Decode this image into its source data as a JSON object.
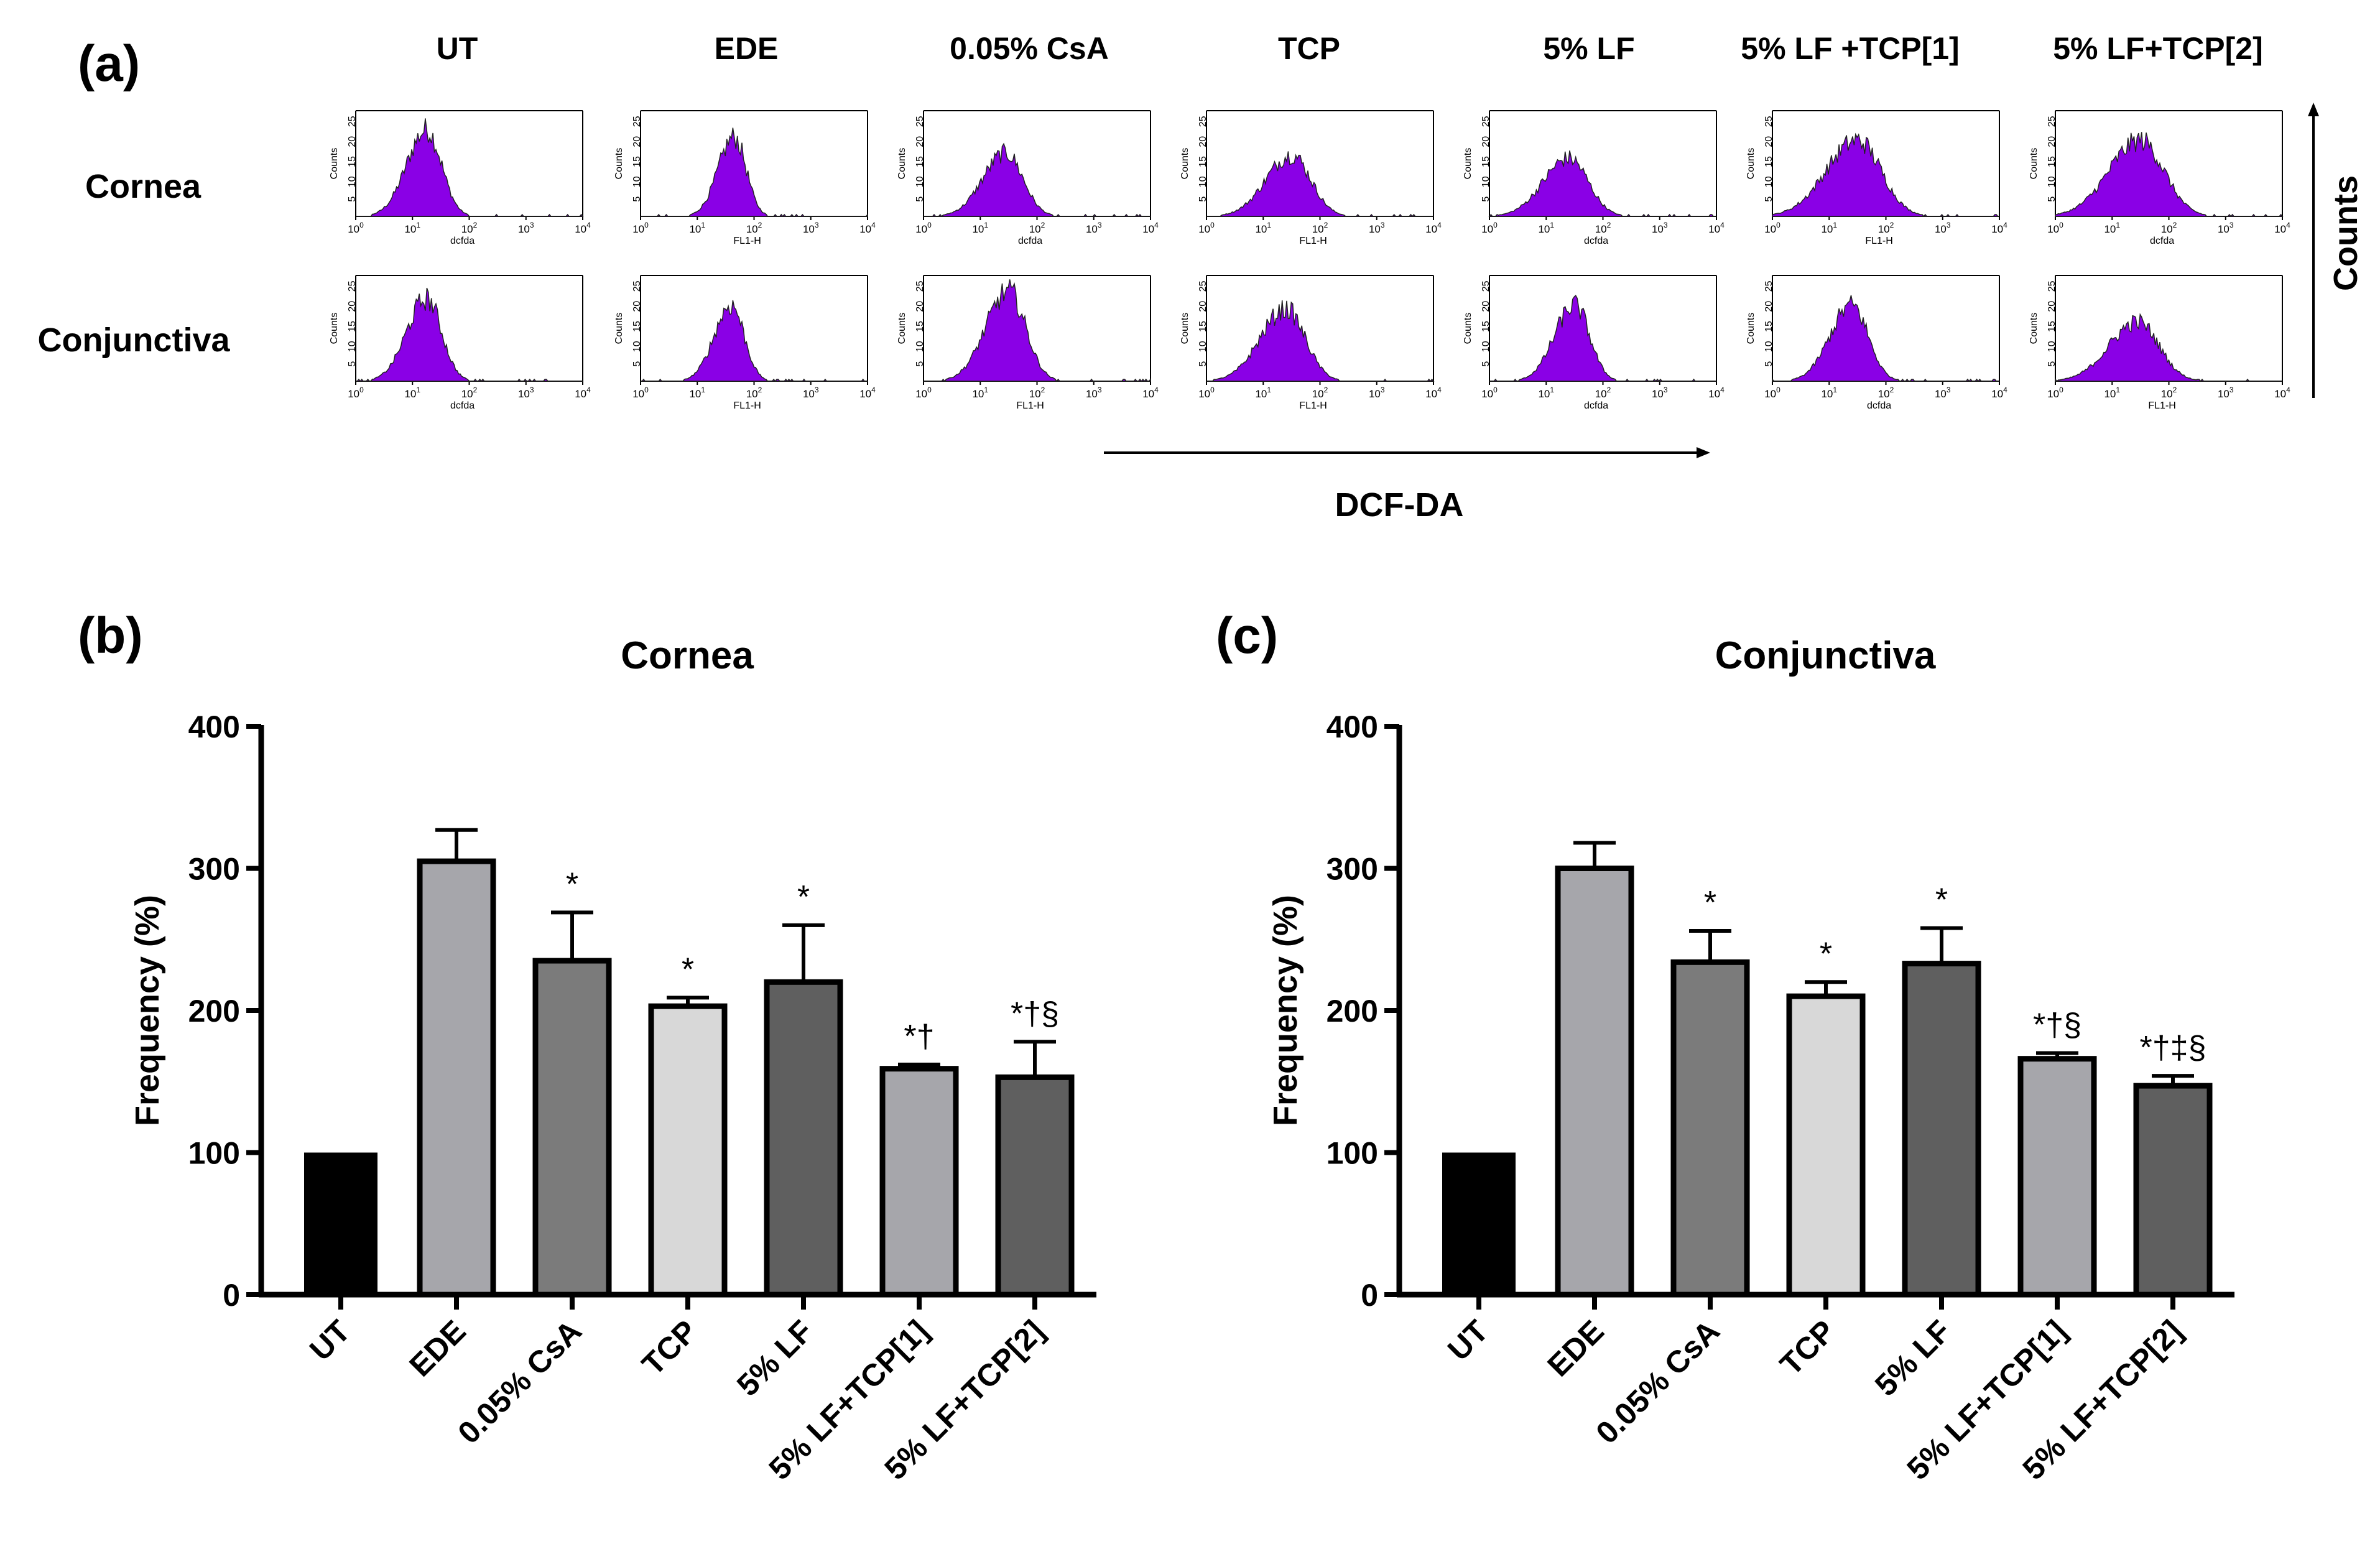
{
  "panel_a": {
    "label": "(a)",
    "conditions": [
      "UT",
      "EDE",
      "0.05% CsA",
      "TCP",
      "5% LF",
      "5% LF +TCP[1]",
      "5% LF+TCP[2]"
    ],
    "rows": [
      "Cornea",
      "Conjunctiva"
    ],
    "x_axis_name": "DCF-DA",
    "y_axis_name": "Counts",
    "hist_ylabel": "Counts",
    "hist_ytick_labels": [
      "0",
      "5",
      "10",
      "15",
      "20",
      "25"
    ],
    "hist_xtick_labels": [
      "10",
      "10",
      "10",
      "10",
      "10"
    ],
    "hist_xtick_exponents": [
      "0",
      "1",
      "2",
      "3",
      "4"
    ],
    "hist_xlabels": [
      [
        "dcfda",
        "FL1-H",
        "dcfda",
        "FL1-H",
        "dcfda",
        "FL1-H",
        "dcfda"
      ],
      [
        "dcfda",
        "FL1-H",
        "FL1-H",
        "FL1-H",
        "dcfda",
        "dcfda",
        "FL1-H"
      ]
    ],
    "hist_color": "#8a00e6",
    "hist_peaks_log": [
      [
        1.25,
        1.65,
        1.45,
        1.5,
        1.4,
        1.5,
        1.5
      ],
      [
        1.25,
        1.6,
        1.5,
        1.4,
        1.5,
        1.4,
        1.45
      ]
    ],
    "hist_peak_heights": [
      [
        0.82,
        0.75,
        0.6,
        0.58,
        0.55,
        0.72,
        0.72
      ],
      [
        0.78,
        0.72,
        0.85,
        0.68,
        0.72,
        0.72,
        0.56
      ]
    ],
    "hist_widths": [
      [
        0.35,
        0.28,
        0.4,
        0.45,
        0.45,
        0.55,
        0.55
      ],
      [
        0.35,
        0.3,
        0.4,
        0.45,
        0.35,
        0.38,
        0.5
      ]
    ]
  },
  "chart_data": [
    {
      "panel_label": "(b)",
      "type": "bar",
      "title": "Cornea",
      "xlabel": "",
      "ylabel": "Frequency (%)",
      "ylim": [
        0,
        400
      ],
      "yticks": [
        0,
        100,
        200,
        300,
        400
      ],
      "categories": [
        "UT",
        "EDE",
        "0.05% CsA",
        "TCP",
        "5% LF",
        "5% LF+TCP[1]",
        "5% LF+TCP[2]"
      ],
      "values": [
        100,
        305,
        235,
        203,
        220,
        159,
        153
      ],
      "errors": [
        0,
        22,
        34,
        6,
        40,
        3,
        25
      ],
      "annotations": [
        "",
        "",
        "*",
        "*",
        "*",
        "*†",
        "*†§"
      ],
      "bar_colors": [
        "#000000",
        "#a6a6ab",
        "#7b7b7b",
        "#d8d8d8",
        "#5f5f5f",
        "#a6a6ab",
        "#5f5f5f"
      ]
    },
    {
      "panel_label": "(c)",
      "type": "bar",
      "title": "Conjunctiva",
      "xlabel": "",
      "ylabel": "Frequency (%)",
      "ylim": [
        0,
        400
      ],
      "yticks": [
        0,
        100,
        200,
        300,
        400
      ],
      "categories": [
        "UT",
        "EDE",
        "0.05% CsA",
        "TCP",
        "5% LF",
        "5% LF+TCP[1]",
        "5% LF+TCP[2]"
      ],
      "values": [
        100,
        300,
        234,
        210,
        233,
        166,
        147
      ],
      "errors": [
        0,
        18,
        22,
        10,
        25,
        4,
        7
      ],
      "annotations": [
        "",
        "",
        "*",
        "*",
        "*",
        "*†§",
        "*†‡§"
      ],
      "bar_colors": [
        "#000000",
        "#a6a6ab",
        "#7b7b7b",
        "#d8d8d8",
        "#5f5f5f",
        "#a6a6ab",
        "#5f5f5f"
      ]
    }
  ]
}
